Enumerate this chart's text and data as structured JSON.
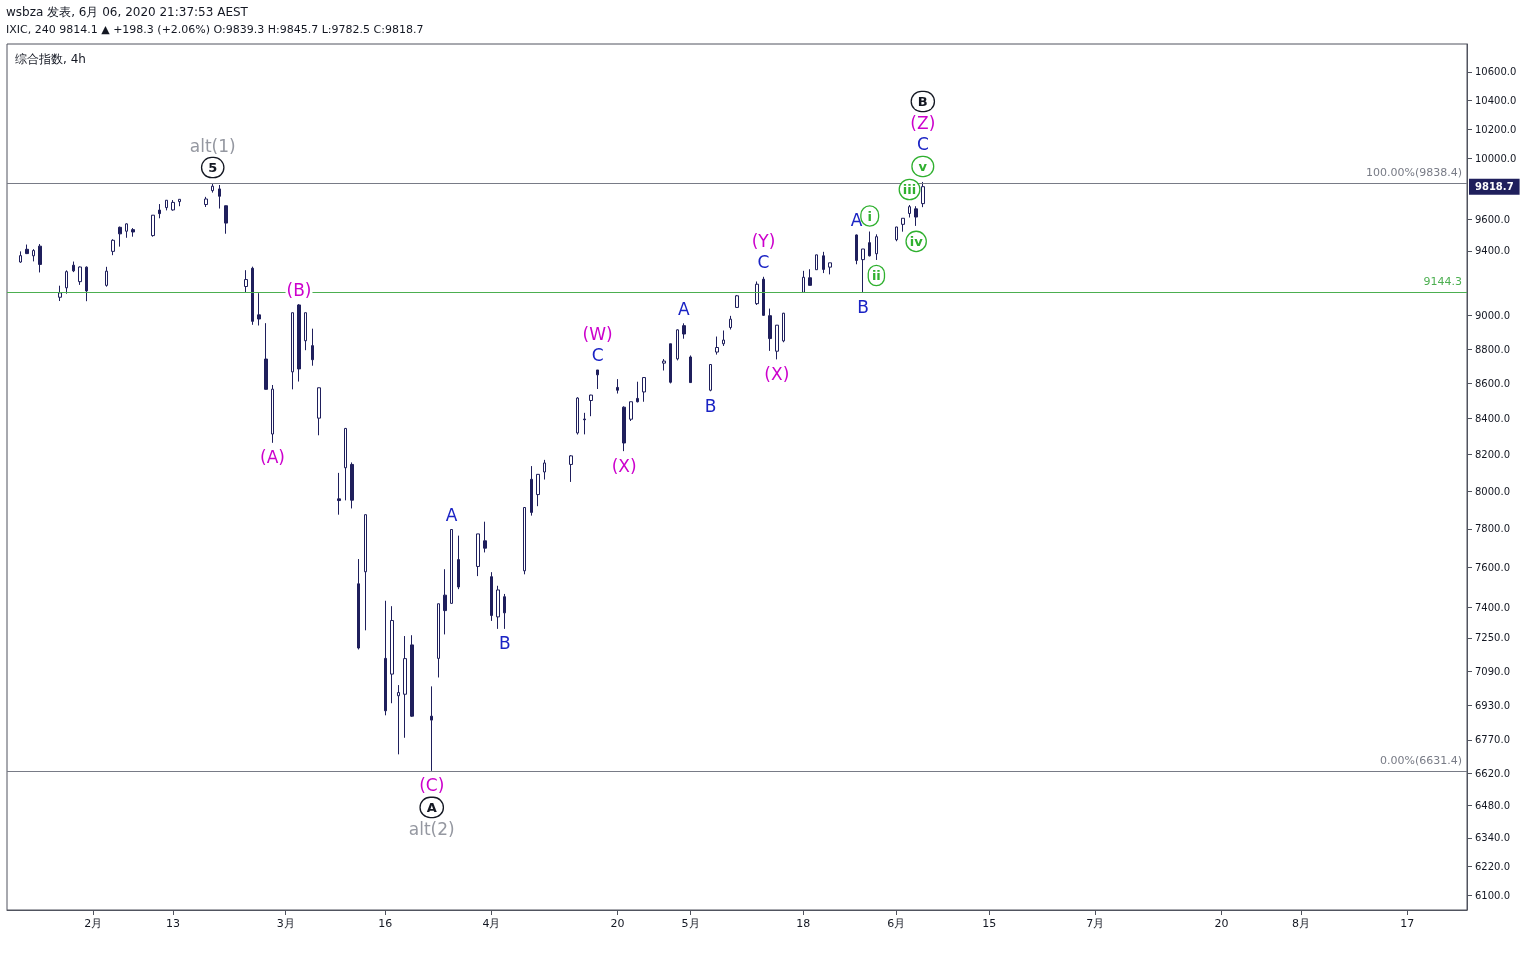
{
  "chart_data": {
    "type": "candlestick",
    "title": "综合指数, 4h",
    "subtitle": "wsbza 发表, 6月 06, 2020 21:37:53 AEST",
    "color": "#1f1f5c",
    "log": true,
    "xlim": [
      "2020-01-19",
      "2020-08-26"
    ],
    "xticks": [
      {
        "value": "2020-02-01",
        "label": "2月"
      },
      {
        "value": "2020-02-13",
        "label": "13"
      },
      {
        "value": "2020-03-01",
        "label": "3月"
      },
      {
        "value": "2020-03-16",
        "label": "16"
      },
      {
        "value": "2020-04-01",
        "label": "4月"
      },
      {
        "value": "2020-04-20",
        "label": "20"
      },
      {
        "value": "2020-05-01",
        "label": "5月"
      },
      {
        "value": "2020-05-18",
        "label": "18"
      },
      {
        "value": "2020-06-01",
        "label": "6月"
      },
      {
        "value": "2020-06-15",
        "label": "15"
      },
      {
        "value": "2020-07-01",
        "label": "7月"
      },
      {
        "value": "2020-07-20",
        "label": "20"
      },
      {
        "value": "2020-08-01",
        "label": "8月"
      },
      {
        "value": "2020-08-17",
        "label": "17"
      }
    ],
    "ylim": [
      6040,
      10800
    ],
    "yticks": [
      {
        "value": 6100,
        "label": "6100.0"
      },
      {
        "value": 6220,
        "label": "6220.0"
      },
      {
        "value": 6340,
        "label": "6340.0"
      },
      {
        "value": 6480,
        "label": "6480.0"
      },
      {
        "value": 6620,
        "label": "6620.0"
      },
      {
        "value": 6770,
        "label": "6770.0"
      },
      {
        "value": 6930,
        "label": "6930.0"
      },
      {
        "value": 7090,
        "label": "7090.0"
      },
      {
        "value": 7250,
        "label": "7250.0"
      },
      {
        "value": 7400,
        "label": "7400.0"
      },
      {
        "value": 7600,
        "label": "7600.0"
      },
      {
        "value": 7800,
        "label": "7800.0"
      },
      {
        "value": 8000,
        "label": "8000.0"
      },
      {
        "value": 8200,
        "label": "8200.0"
      },
      {
        "value": 8400,
        "label": "8400.0"
      },
      {
        "value": 8600,
        "label": "8600.0"
      },
      {
        "value": 8800,
        "label": "8800.0"
      },
      {
        "value": 9000,
        "label": "9000.0"
      },
      {
        "value": 9400,
        "label": "9400.0"
      },
      {
        "value": 9600,
        "label": "9600.0"
      },
      {
        "value": 10000,
        "label": "10000.0"
      },
      {
        "value": 10200,
        "label": "10200.0"
      },
      {
        "value": 10400,
        "label": "10400.0"
      },
      {
        "value": 10600,
        "label": "10600.0"
      }
    ],
    "x": [
      "2020-01-21",
      "2020-01-22",
      "2020-01-23",
      "2020-01-24",
      "2020-01-27",
      "2020-01-28",
      "2020-01-29",
      "2020-01-30",
      "2020-01-31",
      "2020-02-03",
      "2020-02-04",
      "2020-02-05",
      "2020-02-06",
      "2020-02-07",
      "2020-02-10",
      "2020-02-11",
      "2020-02-12",
      "2020-02-13",
      "2020-02-14",
      "2020-02-18",
      "2020-02-19",
      "2020-02-20",
      "2020-02-21",
      "2020-02-24",
      "2020-02-25",
      "2020-02-26",
      "2020-02-27",
      "2020-02-28",
      "2020-03-02",
      "2020-03-03",
      "2020-03-04",
      "2020-03-05",
      "2020-03-06",
      "2020-03-09",
      "2020-03-10",
      "2020-03-11",
      "2020-03-12",
      "2020-03-13",
      "2020-03-16",
      "2020-03-17",
      "2020-03-18",
      "2020-03-19",
      "2020-03-20",
      "2020-03-23",
      "2020-03-24",
      "2020-03-25",
      "2020-03-26",
      "2020-03-27",
      "2020-03-30",
      "2020-03-31",
      "2020-04-01",
      "2020-04-02",
      "2020-04-03",
      "2020-04-06",
      "2020-04-07",
      "2020-04-08",
      "2020-04-09",
      "2020-04-13",
      "2020-04-14",
      "2020-04-15",
      "2020-04-16",
      "2020-04-17",
      "2020-04-20",
      "2020-04-21",
      "2020-04-22",
      "2020-04-23",
      "2020-04-24",
      "2020-04-27",
      "2020-04-28",
      "2020-04-29",
      "2020-04-30",
      "2020-05-01",
      "2020-05-04",
      "2020-05-05",
      "2020-05-06",
      "2020-05-07",
      "2020-05-08",
      "2020-05-11",
      "2020-05-12",
      "2020-05-13",
      "2020-05-14",
      "2020-05-15",
      "2020-05-18",
      "2020-05-19",
      "2020-05-20",
      "2020-05-21",
      "2020-05-22",
      "2020-05-26",
      "2020-05-27",
      "2020-05-28",
      "2020-05-29",
      "2020-06-01",
      "2020-06-02",
      "2020-06-03",
      "2020-06-04",
      "2020-06-05"
    ],
    "ohlc": [
      [
        9330,
        9397,
        9325,
        9370
      ],
      [
        9410,
        9440,
        9380,
        9383
      ],
      [
        9369,
        9411,
        9334,
        9402
      ],
      [
        9430,
        9443,
        9265,
        9315
      ],
      [
        9112,
        9183,
        9089,
        9139
      ],
      [
        9170,
        9278,
        9134,
        9270
      ],
      [
        9310,
        9333,
        9267,
        9275
      ],
      [
        9208,
        9302,
        9188,
        9299
      ],
      [
        9298,
        9303,
        9088,
        9151
      ],
      [
        9185,
        9300,
        9177,
        9273
      ],
      [
        9397,
        9474,
        9373,
        9467
      ],
      [
        9550,
        9555,
        9427,
        9508
      ],
      [
        9525,
        9575,
        9483,
        9572
      ],
      [
        9535,
        9545,
        9490,
        9520
      ],
      [
        9497,
        9629,
        9490,
        9628
      ],
      [
        9661,
        9700,
        9608,
        9638
      ],
      [
        9677,
        9726,
        9659,
        9725
      ],
      [
        9662,
        9726,
        9657,
        9711
      ],
      [
        9716,
        9732,
        9686,
        9731
      ],
      [
        9697,
        9747,
        9681,
        9733
      ],
      [
        9788,
        9838,
        9775,
        9817
      ],
      [
        9799,
        9825,
        9671,
        9751
      ],
      [
        9689,
        9690,
        9509,
        9577
      ],
      [
        9178,
        9279,
        9141,
        9221
      ],
      [
        9291,
        9301,
        8945,
        8966
      ],
      [
        9005,
        9137,
        8941,
        8980
      ],
      [
        8742,
        8955,
        8565,
        8566
      ],
      [
        8313,
        8591,
        8264,
        8567
      ],
      [
        8667,
        9018,
        8566,
        9018
      ],
      [
        9065,
        9070,
        8611,
        8684
      ],
      [
        8850,
        9018,
        8794,
        9018
      ],
      [
        8821,
        8922,
        8703,
        8738
      ],
      [
        8402,
        8576,
        8306,
        8575
      ],
      [
        7959,
        8099,
        7875,
        7950
      ],
      [
        8127,
        8347,
        7951,
        8344
      ],
      [
        8145,
        8156,
        7908,
        7952
      ],
      [
        7518,
        7644,
        7194,
        7201
      ],
      [
        7579,
        7875,
        7287,
        7875
      ],
      [
        7151,
        7433,
        6883,
        6904
      ],
      [
        7076,
        7406,
        6939,
        7335
      ],
      [
        6974,
        7024,
        6705,
        6989
      ],
      [
        6981,
        7259,
        6780,
        7150
      ],
      [
        7216,
        7263,
        6876,
        6879
      ],
      [
        6879,
        7018,
        6631,
        6861
      ],
      [
        7151,
        7418,
        7060,
        7418
      ],
      [
        7461,
        7592,
        7267,
        7384
      ],
      [
        7420,
        7797,
        7420,
        7797
      ],
      [
        7641,
        7765,
        7491,
        7502
      ],
      [
        7606,
        7774,
        7557,
        7774
      ],
      [
        7738,
        7838,
        7678,
        7700
      ],
      [
        7554,
        7577,
        7333,
        7360
      ],
      [
        7353,
        7508,
        7294,
        7487
      ],
      [
        7453,
        7467,
        7294,
        7373
      ],
      [
        7584,
        7913,
        7566,
        7913
      ],
      [
        8064,
        8136,
        7870,
        7887
      ],
      [
        7982,
        8091,
        7920,
        8091
      ],
      [
        8104,
        8170,
        8063,
        8153
      ],
      [
        8145,
        8196,
        8050,
        8192
      ],
      [
        8319,
        8521,
        8310,
        8516
      ],
      [
        8397,
        8432,
        8311,
        8393
      ],
      [
        8502,
        8535,
        8413,
        8533
      ],
      [
        8678,
        8678,
        8568,
        8650
      ],
      [
        8577,
        8625,
        8542,
        8561
      ],
      [
        8464,
        8469,
        8218,
        8263
      ],
      [
        8396,
        8495,
        8386,
        8495
      ],
      [
        8514,
        8610,
        8491,
        8495
      ],
      [
        8551,
        8636,
        8495,
        8634
      ],
      [
        8718,
        8742,
        8675,
        8730
      ],
      [
        8832,
        8832,
        8600,
        8607
      ],
      [
        8743,
        8918,
        8734,
        8915
      ],
      [
        8940,
        8954,
        8862,
        8890
      ],
      [
        8754,
        8763,
        8604,
        8605
      ],
      [
        8561,
        8710,
        8555,
        8710
      ],
      [
        8783,
        8875,
        8768,
        8810
      ],
      [
        8832,
        8911,
        8819,
        8854
      ],
      [
        8929,
        8999,
        8917,
        8979
      ],
      [
        9050,
        9126,
        9048,
        9121
      ],
      [
        9073,
        9209,
        9065,
        9192
      ],
      [
        9223,
        9238,
        8999,
        9002
      ],
      [
        9000,
        9043,
        8790,
        8863
      ],
      [
        8788,
        8944,
        8740,
        8943
      ],
      [
        8849,
        9017,
        8841,
        9015
      ],
      [
        9142,
        9275,
        9142,
        9235
      ],
      [
        9232,
        9285,
        9185,
        9185
      ],
      [
        9282,
        9376,
        9282,
        9375
      ],
      [
        9369,
        9394,
        9261,
        9284
      ],
      [
        9298,
        9325,
        9253,
        9325
      ],
      [
        9501,
        9504,
        9316,
        9340
      ],
      [
        9345,
        9412,
        9144,
        9412
      ],
      [
        9452,
        9523,
        9365,
        9369
      ],
      [
        9382,
        9505,
        9343,
        9490
      ],
      [
        9471,
        9553,
        9461,
        9552
      ],
      [
        9569,
        9608,
        9522,
        9608
      ],
      [
        9639,
        9694,
        9613,
        9683
      ],
      [
        9669,
        9686,
        9559,
        9616
      ],
      [
        9703,
        9845,
        9680,
        9814
      ]
    ],
    "ref_lines": [
      {
        "axis": "y",
        "value": 9838.4,
        "label": "100.00%(9838.4)",
        "color": "#787b86"
      },
      {
        "axis": "y",
        "value": 6631.4,
        "label": "0.00%(6631.4)",
        "color": "#787b86"
      },
      {
        "axis": "y",
        "value": 9144.3,
        "label": "9144.3",
        "color": "#4caf50"
      }
    ],
    "annotations": [
      "IXIC, 240 9814.1 ▲ +198.3 (+2.06%) O:9839.3 H:9845.7 L:9782.5 C:9818.7",
      "9818.7",
      {
        "text": "5",
        "x": "2020-02-19",
        "y": 9838
      },
      {
        "text": "alt(1)",
        "x": "2020-02-19",
        "y": 9838
      },
      {
        "text": "(B)",
        "x": "2020-03-03",
        "y": 9070
      },
      {
        "text": "(A)",
        "x": "2020-02-28",
        "y": 8264
      },
      {
        "text": "A",
        "x": "2020-03-26",
        "y": 7797
      },
      {
        "text": "B",
        "x": "2020-04-03",
        "y": 7294
      },
      {
        "text": "(C)",
        "x": "2020-03-23",
        "y": 6631
      },
      {
        "text": "A",
        "x": "2020-03-23",
        "y": 6631
      },
      {
        "text": "alt(2)",
        "x": "2020-03-23",
        "y": 6631
      },
      {
        "text": "C",
        "x": "2020-04-17",
        "y": 8678
      },
      {
        "text": "(W)",
        "x": "2020-04-17",
        "y": 8678
      },
      {
        "text": "(X)",
        "x": "2020-04-21",
        "y": 8218
      },
      {
        "text": "A",
        "x": "2020-04-30",
        "y": 8954
      },
      {
        "text": "B",
        "x": "2020-05-04",
        "y": 8555
      },
      {
        "text": "C",
        "x": "2020-05-12",
        "y": 9238
      },
      {
        "text": "(Y)",
        "x": "2020-05-12",
        "y": 9238
      },
      {
        "text": "(X)",
        "x": "2020-05-14",
        "y": 8740
      },
      {
        "text": "A",
        "x": "2020-05-26",
        "y": 9504
      },
      {
        "text": "i",
        "x": "2020-05-28",
        "y": 9523
      },
      {
        "text": "B",
        "x": "2020-05-27",
        "y": 9144
      },
      {
        "text": "ii",
        "x": "2020-05-29",
        "y": 9343
      },
      {
        "text": "iii",
        "x": "2020-06-03",
        "y": 9694
      },
      {
        "text": "iv",
        "x": "2020-06-04",
        "y": 9559
      },
      {
        "text": "v",
        "x": "2020-06-05",
        "y": 9845
      },
      {
        "text": "C",
        "x": "2020-06-05",
        "y": 9845
      },
      {
        "text": "(Z)",
        "x": "2020-06-05",
        "y": 9845
      },
      "B"
    ]
  }
}
